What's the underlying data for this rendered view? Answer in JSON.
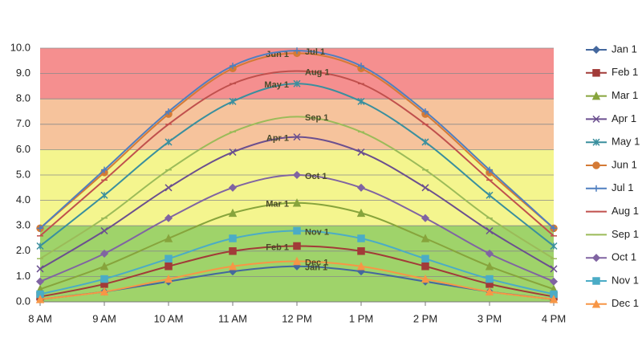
{
  "chart_data": {
    "type": "line",
    "categories": [
      "8 AM",
      "9 AM",
      "10 AM",
      "11 AM",
      "12 PM",
      "1 PM",
      "2 PM",
      "3 PM",
      "4 PM"
    ],
    "ylim": [
      0,
      10
    ],
    "yticks": [
      {
        "value": 0,
        "label": "0.0"
      },
      {
        "value": 1,
        "label": "1.0"
      },
      {
        "value": 2,
        "label": "2.0"
      },
      {
        "value": 3,
        "label": "3.0"
      },
      {
        "value": 4,
        "label": "4.0"
      },
      {
        "value": 5,
        "label": "5.0"
      },
      {
        "value": 6,
        "label": "6.0"
      },
      {
        "value": 7,
        "label": "7.0"
      },
      {
        "value": 8,
        "label": "8.0"
      },
      {
        "value": 9,
        "label": "9.0"
      },
      {
        "value": 10,
        "label": "10.0"
      }
    ],
    "grid": true,
    "legend": "right",
    "bands": [
      {
        "from": 0,
        "to": 3,
        "color": "#9fd36a"
      },
      {
        "from": 3,
        "to": 6,
        "color": "#f4f58e"
      },
      {
        "from": 6,
        "to": 8,
        "color": "#f6c39c"
      },
      {
        "from": 8,
        "to": 10,
        "color": "#f58f8f"
      }
    ],
    "series": [
      {
        "name": "Jan 1",
        "color": "#44689e",
        "marker": "diamond",
        "values": [
          0.1,
          0.4,
          0.8,
          1.2,
          1.4,
          1.2,
          0.8,
          0.4,
          0.1
        ]
      },
      {
        "name": "Feb 1",
        "color": "#a23b38",
        "marker": "square",
        "values": [
          0.2,
          0.7,
          1.4,
          2.0,
          2.2,
          2.0,
          1.4,
          0.7,
          0.2
        ]
      },
      {
        "name": "Mar 1",
        "color": "#87a43c",
        "marker": "triangle",
        "values": [
          0.5,
          1.4,
          2.5,
          3.5,
          3.9,
          3.5,
          2.5,
          1.4,
          0.5
        ]
      },
      {
        "name": "Apr 1",
        "color": "#6b4f8f",
        "marker": "x",
        "values": [
          1.3,
          2.8,
          4.5,
          5.9,
          6.5,
          5.9,
          4.5,
          2.8,
          1.3
        ]
      },
      {
        "name": "May 1",
        "color": "#3a8f9e",
        "marker": "star",
        "values": [
          2.2,
          4.2,
          6.3,
          7.9,
          8.6,
          7.9,
          6.3,
          4.2,
          2.2
        ]
      },
      {
        "name": "Jun 1",
        "color": "#d47a35",
        "marker": "circle",
        "values": [
          2.9,
          5.1,
          7.4,
          9.2,
          9.8,
          9.2,
          7.4,
          5.1,
          2.9
        ]
      },
      {
        "name": "Jul 1",
        "color": "#4f7fc0",
        "marker": "plus",
        "values": [
          2.9,
          5.2,
          7.5,
          9.3,
          9.9,
          9.3,
          7.5,
          5.2,
          2.9
        ]
      },
      {
        "name": "Aug 1",
        "color": "#c0504d",
        "marker": "dash",
        "values": [
          2.6,
          4.8,
          7.0,
          8.6,
          9.1,
          8.6,
          7.0,
          4.8,
          2.6
        ]
      },
      {
        "name": "Sep 1",
        "color": "#9bbb59",
        "marker": "dash",
        "values": [
          1.7,
          3.3,
          5.2,
          6.7,
          7.3,
          6.7,
          5.2,
          3.3,
          1.7
        ]
      },
      {
        "name": "Oct 1",
        "color": "#8064a2",
        "marker": "diamond",
        "values": [
          0.8,
          1.9,
          3.3,
          4.5,
          5.0,
          4.5,
          3.3,
          1.9,
          0.8
        ]
      },
      {
        "name": "Nov 1",
        "color": "#4bacc6",
        "marker": "square",
        "values": [
          0.3,
          0.9,
          1.7,
          2.5,
          2.8,
          2.5,
          1.7,
          0.9,
          0.3
        ]
      },
      {
        "name": "Dec 1",
        "color": "#f79646",
        "marker": "triangle",
        "values": [
          0.1,
          0.4,
          0.9,
          1.4,
          1.6,
          1.4,
          0.9,
          0.4,
          0.1
        ]
      }
    ]
  }
}
